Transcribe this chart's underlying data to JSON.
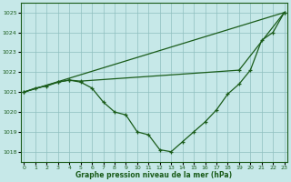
{
  "background_color": "#c6e8e8",
  "grid_color": "#8fbfbf",
  "line_color": "#1a5c1a",
  "xlabel": "Graphe pression niveau de la mer (hPa)",
  "ylim": [
    1017.5,
    1025.5
  ],
  "xlim": [
    -0.3,
    23.3
  ],
  "yticks": [
    1018,
    1019,
    1020,
    1021,
    1022,
    1023,
    1024,
    1025
  ],
  "xticks": [
    0,
    1,
    2,
    3,
    4,
    5,
    6,
    7,
    8,
    9,
    10,
    11,
    12,
    13,
    14,
    15,
    16,
    17,
    18,
    19,
    20,
    21,
    22,
    23
  ],
  "series1_x": [
    0,
    23
  ],
  "series1_y": [
    1021.0,
    1025.0
  ],
  "series2_x": [
    0,
    3,
    4,
    5,
    19,
    23
  ],
  "series2_y": [
    1021.0,
    1021.5,
    1021.6,
    1021.55,
    1022.1,
    1025.0
  ],
  "series3_x": [
    0,
    1,
    2,
    3,
    4,
    5,
    6,
    7,
    8,
    9,
    10,
    11,
    12,
    13,
    14,
    15,
    16,
    17,
    18,
    19,
    20,
    21,
    22,
    23
  ],
  "series3_y": [
    1021.0,
    1021.2,
    1021.3,
    1021.5,
    1021.6,
    1021.5,
    1021.2,
    1020.5,
    1020.0,
    1019.85,
    1019.0,
    1018.85,
    1018.1,
    1018.0,
    1018.5,
    1019.0,
    1019.5,
    1020.1,
    1020.9,
    1021.4,
    1022.1,
    1023.6,
    1024.0,
    1025.0
  ]
}
